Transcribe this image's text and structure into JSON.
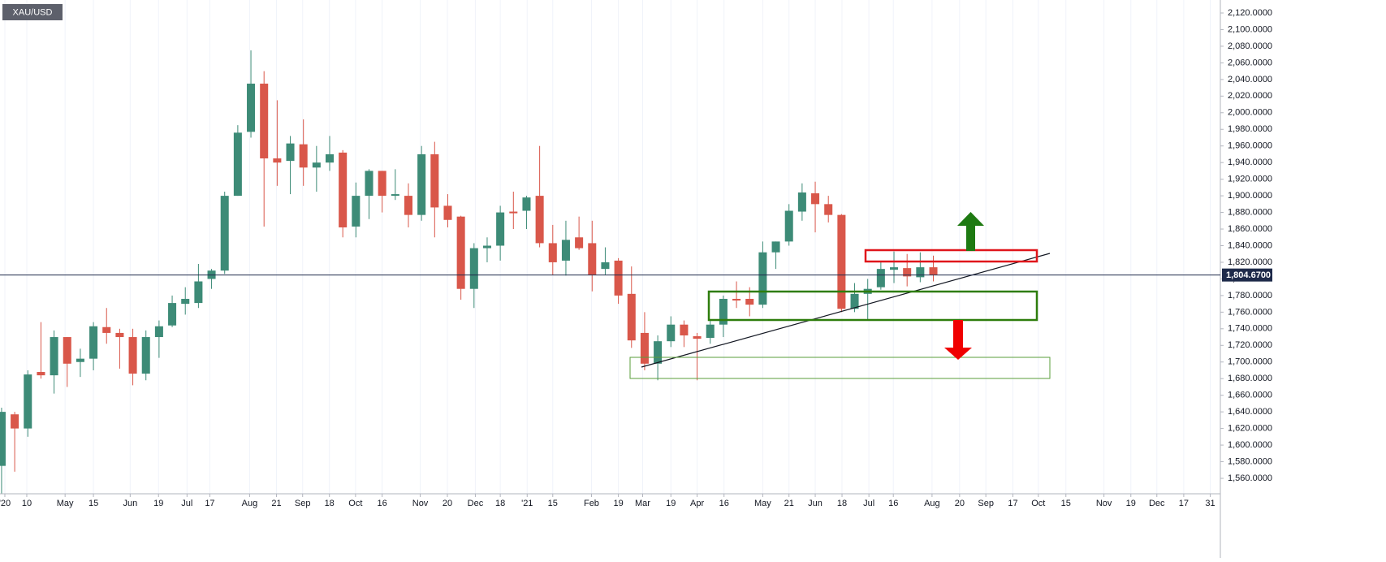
{
  "chart_data": {
    "type": "candlestick",
    "title": "XAU/USD",
    "up_color": "#3d8b77",
    "down_color": "#d9574a",
    "grid": true,
    "x": [
      0,
      1,
      2,
      3,
      4,
      5,
      6,
      7,
      8,
      9,
      10,
      11,
      12,
      13,
      14,
      15,
      16,
      17,
      18,
      19,
      20,
      21,
      22,
      23,
      24,
      25,
      26,
      27,
      28,
      29,
      30,
      31,
      32,
      33,
      34,
      35,
      36,
      37,
      38,
      39,
      40,
      41,
      42,
      43,
      44,
      45,
      46,
      47,
      48,
      49,
      50,
      51,
      52,
      53,
      54,
      55,
      56,
      57,
      58,
      59,
      60,
      61,
      62,
      63,
      64,
      65,
      66,
      67,
      68,
      69,
      70,
      71
    ],
    "open": [
      1575,
      1637,
      1620,
      1688,
      1684,
      1730,
      1700,
      1704,
      1742,
      1735,
      1730,
      1686,
      1730,
      1744,
      1770,
      1771,
      1800,
      1810,
      1900,
      1977,
      2035,
      1945,
      1942,
      1962,
      1934,
      1940,
      1952,
      1863,
      1900,
      1930,
      1900,
      1900,
      1877,
      1950,
      1888,
      1875,
      1788,
      1837,
      1840,
      1881,
      1882,
      1900,
      1843,
      1822,
      1850,
      1843,
      1812,
      1822,
      1782,
      1735,
      1698,
      1725,
      1745,
      1731,
      1729,
      1745,
      1776,
      1776,
      1769,
      1832,
      1845,
      1881,
      1903,
      1890,
      1877,
      1764,
      1782,
      1790,
      1811,
      1813,
      1802,
      1814
    ],
    "high": [
      1645,
      1640,
      1690,
      1748,
      1738,
      1730,
      1716,
      1748,
      1765,
      1740,
      1740,
      1738,
      1750,
      1780,
      1790,
      1818,
      1812,
      1905,
      1985,
      2075,
      2050,
      2015,
      1972,
      1992,
      1960,
      1972,
      1955,
      1916,
      1932,
      1930,
      1932,
      1915,
      1960,
      1965,
      1902,
      1876,
      1843,
      1850,
      1888,
      1905,
      1900,
      1960,
      1865,
      1870,
      1875,
      1870,
      1838,
      1825,
      1815,
      1760,
      1732,
      1755,
      1750,
      1735,
      1750,
      1780,
      1797,
      1790,
      1845,
      1845,
      1890,
      1915,
      1917,
      1900,
      1878,
      1795,
      1800,
      1820,
      1833,
      1830,
      1832,
      1828
    ],
    "low": [
      1540,
      1568,
      1610,
      1680,
      1662,
      1670,
      1682,
      1690,
      1722,
      1692,
      1672,
      1678,
      1705,
      1742,
      1757,
      1765,
      1788,
      1806,
      1900,
      1970,
      1863,
      1912,
      1902,
      1912,
      1905,
      1930,
      1850,
      1850,
      1872,
      1880,
      1895,
      1862,
      1870,
      1850,
      1862,
      1775,
      1765,
      1820,
      1822,
      1860,
      1860,
      1838,
      1805,
      1804,
      1835,
      1785,
      1805,
      1770,
      1717,
      1690,
      1678,
      1718,
      1718,
      1678,
      1722,
      1730,
      1765,
      1755,
      1765,
      1812,
      1840,
      1870,
      1856,
      1868,
      1760,
      1760,
      1751,
      1787,
      1795,
      1791,
      1796,
      1797
    ],
    "close": [
      1640,
      1620,
      1685,
      1684,
      1730,
      1698,
      1704,
      1743,
      1735,
      1730,
      1686,
      1730,
      1743,
      1771,
      1776,
      1797,
      1810,
      1900,
      1976,
      2035,
      1945,
      1940,
      1963,
      1934,
      1940,
      1950,
      1862,
      1900,
      1930,
      1900,
      1902,
      1877,
      1950,
      1886,
      1871,
      1788,
      1837,
      1840,
      1880,
      1879,
      1898,
      1843,
      1820,
      1847,
      1837,
      1805,
      1820,
      1780,
      1726,
      1698,
      1725,
      1745,
      1732,
      1728,
      1745,
      1776,
      1774,
      1769,
      1832,
      1845,
      1882,
      1904,
      1890,
      1877,
      1764,
      1782,
      1788,
      1812,
      1814,
      1803,
      1814,
      1805
    ],
    "last_price": {
      "value": 1804.67,
      "label": "1,804.6700"
    },
    "xlim": [
      -0.12,
      92.87
    ],
    "ylim": [
      1541.42,
      2135.64
    ],
    "xticks": [
      {
        "value": 0.25,
        "label": "'20"
      },
      {
        "value": 1.92,
        "label": "10"
      },
      {
        "value": 4.84,
        "label": "May"
      },
      {
        "value": 7.0,
        "label": "15"
      },
      {
        "value": 9.8,
        "label": "Jun"
      },
      {
        "value": 11.96,
        "label": "19"
      },
      {
        "value": 14.13,
        "label": "Jul"
      },
      {
        "value": 15.87,
        "label": "17"
      },
      {
        "value": 18.9,
        "label": "Aug"
      },
      {
        "value": 20.95,
        "label": "21"
      },
      {
        "value": 22.94,
        "label": "Sep"
      },
      {
        "value": 24.98,
        "label": "18"
      },
      {
        "value": 26.97,
        "label": "Oct"
      },
      {
        "value": 29.0,
        "label": "16"
      },
      {
        "value": 31.9,
        "label": "Nov"
      },
      {
        "value": 33.97,
        "label": "20"
      },
      {
        "value": 36.1,
        "label": "Dec"
      },
      {
        "value": 38.0,
        "label": "18"
      },
      {
        "value": 40.05,
        "label": "'21"
      },
      {
        "value": 42.0,
        "label": "15"
      },
      {
        "value": 44.95,
        "label": "Feb"
      },
      {
        "value": 47.0,
        "label": "19"
      },
      {
        "value": 48.85,
        "label": "Mar"
      },
      {
        "value": 51.0,
        "label": "19"
      },
      {
        "value": 53.0,
        "label": "Apr"
      },
      {
        "value": 55.05,
        "label": "16"
      },
      {
        "value": 58.0,
        "label": "May"
      },
      {
        "value": 60.0,
        "label": "21"
      },
      {
        "value": 62.0,
        "label": "Jun"
      },
      {
        "value": 64.04,
        "label": "18"
      },
      {
        "value": 66.09,
        "label": "Jul"
      },
      {
        "value": 67.95,
        "label": "16"
      },
      {
        "value": 70.9,
        "label": "Aug"
      },
      {
        "value": 73.0,
        "label": "20"
      },
      {
        "value": 75.0,
        "label": "Sep"
      },
      {
        "value": 77.06,
        "label": "17"
      },
      {
        "value": 79.0,
        "label": "Oct"
      },
      {
        "value": 81.1,
        "label": "15"
      },
      {
        "value": 84.0,
        "label": "Nov"
      },
      {
        "value": 86.05,
        "label": "19"
      },
      {
        "value": 88.03,
        "label": "Dec"
      },
      {
        "value": 90.08,
        "label": "17"
      },
      {
        "value": 92.1,
        "label": "31"
      }
    ],
    "yticks": [
      {
        "value": 2120,
        "label": "2,120.0000"
      },
      {
        "value": 2100,
        "label": "2,100.0000"
      },
      {
        "value": 2080,
        "label": "2,080.0000"
      },
      {
        "value": 2060,
        "label": "2,060.0000"
      },
      {
        "value": 2040,
        "label": "2,040.0000"
      },
      {
        "value": 2020,
        "label": "2,020.0000"
      },
      {
        "value": 2000,
        "label": "2,000.0000"
      },
      {
        "value": 1980,
        "label": "1,980.0000"
      },
      {
        "value": 1960,
        "label": "1,960.0000"
      },
      {
        "value": 1940,
        "label": "1,940.0000"
      },
      {
        "value": 1920,
        "label": "1,920.0000"
      },
      {
        "value": 1900,
        "label": "1,900.0000"
      },
      {
        "value": 1880,
        "label": "1,880.0000"
      },
      {
        "value": 1860,
        "label": "1,860.0000"
      },
      {
        "value": 1840,
        "label": "1,840.0000"
      },
      {
        "value": 1820,
        "label": "1,820.0000"
      },
      {
        "value": 1800,
        "label": "1,800.0000"
      },
      {
        "value": 1780,
        "label": "1,780.0000"
      },
      {
        "value": 1760,
        "label": "1,760.0000"
      },
      {
        "value": 1740,
        "label": "1,740.0000"
      },
      {
        "value": 1720,
        "label": "1,720.0000"
      },
      {
        "value": 1700,
        "label": "1,700.0000"
      },
      {
        "value": 1680,
        "label": "1,680.0000"
      },
      {
        "value": 1660,
        "label": "1,660.0000"
      },
      {
        "value": 1640,
        "label": "1,640.0000"
      },
      {
        "value": 1620,
        "label": "1,620.0000"
      },
      {
        "value": 1600,
        "label": "1,600.0000"
      },
      {
        "value": 1580,
        "label": "1,580.0000"
      },
      {
        "value": 1560,
        "label": "1,560.0000"
      }
    ]
  }
}
